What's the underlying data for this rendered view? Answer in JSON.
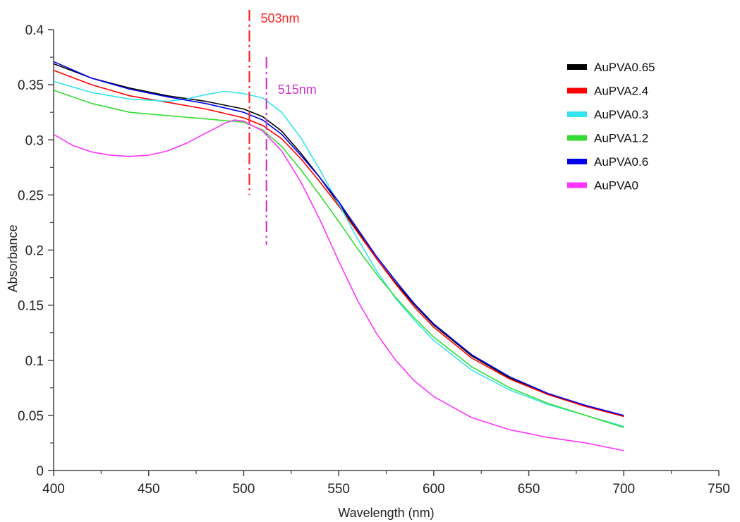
{
  "chart_data": {
    "type": "line",
    "title": "",
    "xlabel": "Wavelength (nm)",
    "ylabel": "Absorbance",
    "xlim": [
      400,
      750
    ],
    "ylim": [
      0,
      0.4
    ],
    "x_ticks": [
      "400",
      "450",
      "500",
      "550",
      "600",
      "650",
      "700",
      "750"
    ],
    "y_ticks": [
      "0",
      "0.05",
      "0.1",
      "0.15",
      "0.2",
      "0.25",
      "0.3",
      "0.35",
      "0.4"
    ],
    "grid": false,
    "legend_position": "top-right",
    "series": [
      {
        "name": "AuPVA0.65",
        "color": "#000000",
        "points": [
          [
            400,
            0.369
          ],
          [
            420,
            0.356
          ],
          [
            440,
            0.347
          ],
          [
            460,
            0.34
          ],
          [
            480,
            0.335
          ],
          [
            500,
            0.328
          ],
          [
            510,
            0.321
          ],
          [
            520,
            0.308
          ],
          [
            530,
            0.288
          ],
          [
            540,
            0.266
          ],
          [
            550,
            0.242
          ],
          [
            560,
            0.217
          ],
          [
            570,
            0.192
          ],
          [
            580,
            0.17
          ],
          [
            590,
            0.15
          ],
          [
            600,
            0.132
          ],
          [
            620,
            0.104
          ],
          [
            640,
            0.084
          ],
          [
            660,
            0.069
          ],
          [
            680,
            0.059
          ],
          [
            700,
            0.049
          ]
        ]
      },
      {
        "name": "AuPVA2.4",
        "color": "#ff0000",
        "points": [
          [
            400,
            0.363
          ],
          [
            420,
            0.35
          ],
          [
            440,
            0.34
          ],
          [
            460,
            0.334
          ],
          [
            480,
            0.328
          ],
          [
            500,
            0.32
          ],
          [
            510,
            0.313
          ],
          [
            520,
            0.301
          ],
          [
            530,
            0.283
          ],
          [
            540,
            0.262
          ],
          [
            550,
            0.24
          ],
          [
            560,
            0.216
          ],
          [
            570,
            0.192
          ],
          [
            580,
            0.169
          ],
          [
            590,
            0.148
          ],
          [
            600,
            0.13
          ],
          [
            620,
            0.102
          ],
          [
            640,
            0.083
          ],
          [
            660,
            0.069
          ],
          [
            680,
            0.058
          ],
          [
            700,
            0.049
          ]
        ]
      },
      {
        "name": "AuPVA0.3",
        "color": "#33e5ee",
        "points": [
          [
            400,
            0.353
          ],
          [
            420,
            0.343
          ],
          [
            440,
            0.337
          ],
          [
            460,
            0.335
          ],
          [
            470,
            0.337
          ],
          [
            480,
            0.341
          ],
          [
            490,
            0.344
          ],
          [
            500,
            0.342
          ],
          [
            510,
            0.338
          ],
          [
            520,
            0.325
          ],
          [
            530,
            0.302
          ],
          [
            540,
            0.273
          ],
          [
            550,
            0.242
          ],
          [
            560,
            0.21
          ],
          [
            570,
            0.181
          ],
          [
            580,
            0.156
          ],
          [
            590,
            0.136
          ],
          [
            600,
            0.118
          ],
          [
            620,
            0.091
          ],
          [
            640,
            0.073
          ],
          [
            660,
            0.06
          ],
          [
            680,
            0.05
          ],
          [
            700,
            0.04
          ]
        ]
      },
      {
        "name": "AuPVA1.2",
        "color": "#33dd33",
        "points": [
          [
            400,
            0.345
          ],
          [
            420,
            0.333
          ],
          [
            440,
            0.325
          ],
          [
            460,
            0.322
          ],
          [
            480,
            0.319
          ],
          [
            500,
            0.316
          ],
          [
            510,
            0.309
          ],
          [
            520,
            0.294
          ],
          [
            530,
            0.273
          ],
          [
            540,
            0.25
          ],
          [
            550,
            0.226
          ],
          [
            560,
            0.201
          ],
          [
            570,
            0.178
          ],
          [
            580,
            0.157
          ],
          [
            590,
            0.138
          ],
          [
            600,
            0.121
          ],
          [
            620,
            0.094
          ],
          [
            640,
            0.075
          ],
          [
            660,
            0.061
          ],
          [
            680,
            0.05
          ],
          [
            700,
            0.039
          ]
        ]
      },
      {
        "name": "AuPVA0.6",
        "color": "#0000ee",
        "points": [
          [
            400,
            0.371
          ],
          [
            420,
            0.356
          ],
          [
            440,
            0.346
          ],
          [
            460,
            0.339
          ],
          [
            480,
            0.333
          ],
          [
            500,
            0.325
          ],
          [
            510,
            0.318
          ],
          [
            520,
            0.305
          ],
          [
            530,
            0.286
          ],
          [
            540,
            0.266
          ],
          [
            550,
            0.244
          ],
          [
            560,
            0.219
          ],
          [
            570,
            0.194
          ],
          [
            580,
            0.172
          ],
          [
            590,
            0.151
          ],
          [
            600,
            0.133
          ],
          [
            620,
            0.105
          ],
          [
            640,
            0.085
          ],
          [
            660,
            0.07
          ],
          [
            680,
            0.059
          ],
          [
            700,
            0.05
          ]
        ]
      },
      {
        "name": "AuPVA0",
        "color": "#ff33ff",
        "points": [
          [
            400,
            0.305
          ],
          [
            410,
            0.295
          ],
          [
            420,
            0.289
          ],
          [
            430,
            0.286
          ],
          [
            440,
            0.285
          ],
          [
            450,
            0.286
          ],
          [
            460,
            0.29
          ],
          [
            470,
            0.297
          ],
          [
            480,
            0.306
          ],
          [
            490,
            0.315
          ],
          [
            495,
            0.318
          ],
          [
            500,
            0.317
          ],
          [
            510,
            0.308
          ],
          [
            520,
            0.29
          ],
          [
            530,
            0.262
          ],
          [
            540,
            0.228
          ],
          [
            550,
            0.19
          ],
          [
            560,
            0.154
          ],
          [
            570,
            0.124
          ],
          [
            580,
            0.1
          ],
          [
            590,
            0.081
          ],
          [
            600,
            0.067
          ],
          [
            620,
            0.048
          ],
          [
            640,
            0.037
          ],
          [
            660,
            0.03
          ],
          [
            680,
            0.025
          ],
          [
            700,
            0.018
          ]
        ]
      }
    ],
    "annotations": [
      {
        "label": "503nm",
        "x": 503,
        "y_from": 0.25,
        "y_to": 0.418,
        "color": "#ff2222"
      },
      {
        "label": "515nm",
        "x": 512,
        "y_from": 0.205,
        "y_to": 0.375,
        "color": "#cc33cc"
      }
    ]
  }
}
